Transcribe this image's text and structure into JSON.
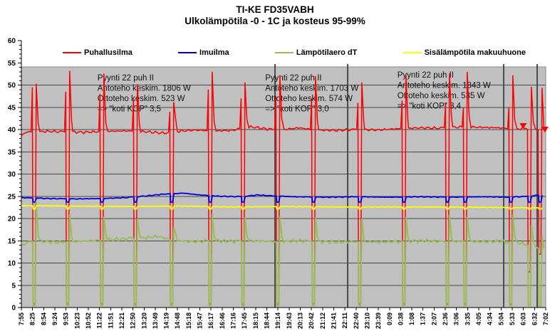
{
  "title": {
    "line1": "TI-KE FD35VABH",
    "line2": "Ulkolämpötila -0 - 1C ja kosteus 95-99%"
  },
  "chart_data": {
    "type": "line",
    "title": "TI-KE FD35VABH",
    "subtitle": "Ulkolämpötila -0 - 1C ja kosteus 95-99%",
    "legend_position": "top",
    "plot_background": "#C0C0C0",
    "gridline_color": "#4a4a4a",
    "separator_color": "#4d4d4d",
    "y_axis": {
      "min": 0,
      "max": 60,
      "major_step": 5,
      "minor_step": 1,
      "ticks": [
        0,
        5,
        10,
        15,
        20,
        25,
        30,
        35,
        40,
        45,
        50,
        55,
        60
      ]
    },
    "x_axis": {
      "labels": [
        "7:55",
        "8:25",
        "8:54",
        "9:24",
        "9:53",
        "10:23",
        "10:52",
        "11:22",
        "11:51",
        "12:21",
        "12:50",
        "13:20",
        "13:49",
        "14:19",
        "14:48",
        "15:18",
        "15:47",
        "16:17",
        "16:46",
        "17:16",
        "17:45",
        "18:15",
        "18:44",
        "19:14",
        "19:43",
        "20:13",
        "20:42",
        "21:12",
        "21:41",
        "22:11",
        "22:40",
        "23:10",
        "23:39",
        "0:09",
        "0:38",
        "1:08",
        "1:37",
        "2:07",
        "2:36",
        "3:06",
        "3:35",
        "4:05",
        "4:34",
        "5:04",
        "5:33",
        "6:03",
        "6:32",
        "7:02"
      ]
    },
    "event_x": [
      0.0245,
      0.0883,
      0.1535,
      0.2174,
      0.2867,
      0.3601,
      0.4226,
      0.4891,
      0.5571,
      0.6454,
      0.7296,
      0.8125,
      0.8465,
      0.9334,
      0.9688,
      0.9891
    ],
    "separators": [
      0.484,
      0.622,
      0.92,
      0.984
    ],
    "markers": [
      {
        "x": 0.957,
        "v": 40.8
      },
      {
        "x": 0.9985,
        "v": 40.0
      }
    ],
    "series": [
      {
        "name": "Puhallusilma",
        "color": "#FF0000",
        "width": 1.5,
        "noise": 0.35,
        "base": [
          [
            0,
            38.6
          ],
          [
            0.008,
            39.4
          ],
          [
            0.05,
            39.6
          ],
          [
            0.08,
            39.5
          ],
          [
            0.12,
            39.4
          ],
          [
            0.16,
            39.6
          ],
          [
            0.2,
            39.7
          ],
          [
            0.24,
            39.5
          ],
          [
            0.27,
            39.2
          ],
          [
            0.3,
            39.6
          ],
          [
            0.33,
            39.9
          ],
          [
            0.37,
            39.7
          ],
          [
            0.4,
            39.8
          ],
          [
            0.44,
            40.6
          ],
          [
            0.47,
            40.1
          ],
          [
            0.5,
            40.0
          ],
          [
            0.53,
            40.4
          ],
          [
            0.56,
            39.9
          ],
          [
            0.6,
            39.8
          ],
          [
            0.64,
            40.0
          ],
          [
            0.68,
            39.9
          ],
          [
            0.72,
            40.2
          ],
          [
            0.76,
            40.4
          ],
          [
            0.8,
            40.3
          ],
          [
            0.84,
            40.6
          ],
          [
            0.88,
            40.5
          ],
          [
            0.91,
            40.4
          ],
          [
            0.945,
            40.1
          ],
          [
            0.965,
            40.3
          ],
          [
            0.985,
            40.0
          ],
          [
            1.0,
            39.8
          ]
        ],
        "events": [
          {
            "x": 0.0245,
            "pre": 49.5,
            "low": 0.8,
            "peak": 50.3,
            "after": 2
          },
          {
            "x": 0.0883,
            "pre": 48.5,
            "low": 0.8,
            "peak": 53.2,
            "after": 2.5
          },
          {
            "x": 0.1535,
            "pre": 48.0,
            "low": 0.8,
            "peak": 52.6,
            "after": 2
          },
          {
            "x": 0.2174,
            "pre": 47.0,
            "low": 0.8,
            "peak": 50.2,
            "after": 2
          },
          {
            "x": 0.2867,
            "pre": 44.0,
            "low": 0.8,
            "peak": 46.2,
            "after": 3
          },
          {
            "x": 0.3601,
            "pre": 49.0,
            "low": 0.8,
            "peak": 53.0,
            "after": 2
          },
          {
            "x": 0.4226,
            "pre": 47.0,
            "low": 0.8,
            "peak": 50.6,
            "after": 2
          },
          {
            "x": 0.4891,
            "pre": 47.5,
            "low": 0.8,
            "peak": 52.2,
            "after": 2.5
          },
          {
            "x": 0.5571,
            "pre": 47.0,
            "low": 0.8,
            "peak": 52.0,
            "after": 2
          },
          {
            "x": 0.6454,
            "pre": 46.0,
            "low": 0.8,
            "peak": 50.6,
            "after": 2
          },
          {
            "x": 0.7296,
            "pre": 46.5,
            "low": 0.8,
            "peak": 52.2,
            "after": 2
          },
          {
            "x": 0.8125,
            "pre": 46.0,
            "low": 0.8,
            "peak": 52.6,
            "after": 3
          },
          {
            "x": 0.8465,
            "pre": 45.0,
            "low": 0.8,
            "peak": 53.0,
            "after": 2.5
          },
          {
            "x": 0.9334,
            "pre": 45.0,
            "low": 0.8,
            "peak": 52.2,
            "after": 2
          },
          {
            "x": 0.9688,
            "pre": 40.0,
            "low": 8.0,
            "peak": 49.6,
            "after": 1.5
          },
          {
            "x": 0.9891,
            "pre": 40.0,
            "low": 12.0,
            "peak": 49.4,
            "after": 0
          }
        ]
      },
      {
        "name": "Imuilma",
        "color": "#0000DD",
        "width": 1.8,
        "noise": 0.12,
        "dip": 23.7,
        "base": [
          [
            0,
            24.7
          ],
          [
            0.05,
            24.5
          ],
          [
            0.1,
            24.4
          ],
          [
            0.15,
            24.5
          ],
          [
            0.2,
            24.7
          ],
          [
            0.24,
            25.1
          ],
          [
            0.28,
            25.6
          ],
          [
            0.31,
            25.7
          ],
          [
            0.34,
            25.3
          ],
          [
            0.38,
            25.0
          ],
          [
            0.42,
            24.9
          ],
          [
            0.45,
            25.3
          ],
          [
            0.48,
            25.1
          ],
          [
            0.52,
            24.9
          ],
          [
            0.58,
            24.8
          ],
          [
            0.64,
            24.9
          ],
          [
            0.7,
            24.8
          ],
          [
            0.76,
            24.9
          ],
          [
            0.82,
            24.8
          ],
          [
            0.88,
            24.9
          ],
          [
            0.93,
            24.8
          ],
          [
            0.97,
            25.0
          ],
          [
            1.0,
            25.4
          ]
        ]
      },
      {
        "name": "Lämpötilaero dT",
        "color": "#9BBB59",
        "width": 2,
        "noise": 0.45,
        "base": [
          [
            0,
            14.2
          ],
          [
            0.03,
            15.0
          ],
          [
            0.07,
            14.6
          ],
          [
            0.11,
            14.9
          ],
          [
            0.15,
            15.1
          ],
          [
            0.19,
            15.4
          ],
          [
            0.23,
            15.6
          ],
          [
            0.26,
            16.0
          ],
          [
            0.29,
            15.1
          ],
          [
            0.33,
            14.8
          ],
          [
            0.37,
            15.0
          ],
          [
            0.41,
            14.9
          ],
          [
            0.45,
            15.0
          ],
          [
            0.49,
            14.8
          ],
          [
            0.53,
            15.0
          ],
          [
            0.57,
            14.8
          ],
          [
            0.61,
            14.7
          ],
          [
            0.65,
            14.8
          ],
          [
            0.69,
            14.7
          ],
          [
            0.73,
            14.9
          ],
          [
            0.77,
            15.0
          ],
          [
            0.81,
            14.8
          ],
          [
            0.85,
            14.9
          ],
          [
            0.89,
            14.8
          ],
          [
            0.92,
            14.9
          ],
          [
            0.95,
            14.5
          ],
          [
            0.975,
            13.8
          ],
          [
            1.0,
            12.8
          ]
        ],
        "events": [
          {
            "x": 0.0245,
            "low": 0.4,
            "peak": 24.0,
            "after": 1.2
          },
          {
            "x": 0.0883,
            "low": 0.4,
            "peak": 21.0,
            "after": 1.2
          },
          {
            "x": 0.1535,
            "low": 0.4,
            "peak": 20.5,
            "after": 1.2
          },
          {
            "x": 0.2174,
            "low": 0.4,
            "peak": 20.0,
            "after": 1.2
          },
          {
            "x": 0.2867,
            "low": 0.4,
            "peak": 18.0,
            "after": 1.5
          },
          {
            "x": 0.3601,
            "low": 0.4,
            "peak": 21.0,
            "after": 1.2
          },
          {
            "x": 0.4226,
            "low": 0.4,
            "peak": 20.3,
            "after": 1.2
          },
          {
            "x": 0.4891,
            "low": 0.4,
            "peak": 20.6,
            "after": 1.2
          },
          {
            "x": 0.5571,
            "low": 0.4,
            "peak": 20.2,
            "after": 1.2
          },
          {
            "x": 0.6454,
            "low": 0.4,
            "peak": 20.0,
            "after": 1.2
          },
          {
            "x": 0.7296,
            "low": 0.4,
            "peak": 20.4,
            "after": 1.2
          },
          {
            "x": 0.8125,
            "low": 0.4,
            "peak": 21.0,
            "after": 1.2
          },
          {
            "x": 0.8465,
            "low": 0.4,
            "peak": 20.6,
            "after": 1.2
          },
          {
            "x": 0.9334,
            "low": 0.4,
            "peak": 21.0,
            "after": 1.2
          },
          {
            "x": 0.9688,
            "low": 0.4,
            "peak": 18.5,
            "after": 1
          },
          {
            "x": 0.9891,
            "low": 0.3,
            "peak": 16.0,
            "after": 0
          }
        ]
      },
      {
        "name": "Sisälämpötila makuuhuone",
        "color": "#FFFF00",
        "width": 1.8,
        "noise": 0.08,
        "dip": 22.15,
        "base": [
          [
            0,
            22.9
          ],
          [
            0.1,
            22.8
          ],
          [
            0.2,
            22.7
          ],
          [
            0.3,
            22.8
          ],
          [
            0.4,
            22.6
          ],
          [
            0.5,
            22.7
          ],
          [
            0.6,
            22.6
          ],
          [
            0.7,
            22.6
          ],
          [
            0.8,
            22.6
          ],
          [
            0.9,
            22.5
          ],
          [
            1.0,
            22.4
          ]
        ]
      }
    ],
    "annotations": [
      {
        "x": 0.145,
        "top": 103,
        "lines": [
          "Pyynti 22 puh II",
          "Antoteho keskim. 1806 W",
          "Ottoteho keskim. 523 W",
          "=> \"koti KOP\" 3,5"
        ]
      },
      {
        "x": 0.465,
        "top": 103,
        "lines": [
          "Pyynti 22 puh II",
          "Antoteho keskim. 1703 W",
          "Ottoteho keskim. 574 W",
          "=> \"koti KOP\" 3,0"
        ]
      },
      {
        "x": 0.717,
        "top": 99,
        "lines": [
          "Pyynti 22 puh II",
          "Antoteho keskim. 1843 W",
          "Ottoteho keskim. 535 W",
          "=> \"koti KOP\" 3,4"
        ]
      }
    ]
  }
}
